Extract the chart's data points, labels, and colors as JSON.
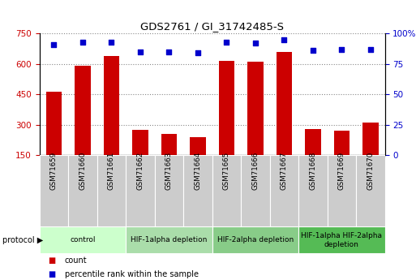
{
  "title": "GDS2761 / GI_31742485-S",
  "samples": [
    "GSM71659",
    "GSM71660",
    "GSM71661",
    "GSM71662",
    "GSM71663",
    "GSM71664",
    "GSM71665",
    "GSM71666",
    "GSM71667",
    "GSM71668",
    "GSM71669",
    "GSM71670"
  ],
  "counts": [
    465,
    590,
    640,
    275,
    255,
    240,
    615,
    610,
    660,
    280,
    270,
    310
  ],
  "percentile_ranks": [
    91,
    93,
    93,
    85,
    85,
    84,
    93,
    92,
    95,
    86,
    87,
    87
  ],
  "ylim_left": [
    150,
    750
  ],
  "ylim_right": [
    0,
    100
  ],
  "yticks_left": [
    150,
    300,
    450,
    600,
    750
  ],
  "yticks_right": [
    0,
    25,
    50,
    75,
    100
  ],
  "bar_color": "#cc0000",
  "dot_color": "#0000cc",
  "groups": [
    {
      "label": "control",
      "indices": [
        0,
        1,
        2
      ],
      "color": "#ccffcc"
    },
    {
      "label": "HIF-1alpha depletion",
      "indices": [
        3,
        4,
        5
      ],
      "color": "#aaddaa"
    },
    {
      "label": "HIF-2alpha depletion",
      "indices": [
        6,
        7,
        8
      ],
      "color": "#88cc88"
    },
    {
      "label": "HIF-1alpha HIF-2alpha\ndepletion",
      "indices": [
        9,
        10,
        11
      ],
      "color": "#55bb55"
    }
  ],
  "legend_count_label": "count",
  "legend_pct_label": "percentile rank within the sample",
  "protocol_label": "protocol",
  "grid_color": "#888888",
  "background_color": "#ffffff",
  "tick_label_area_color": "#cccccc",
  "bar_width": 0.55,
  "dot_size": 16
}
